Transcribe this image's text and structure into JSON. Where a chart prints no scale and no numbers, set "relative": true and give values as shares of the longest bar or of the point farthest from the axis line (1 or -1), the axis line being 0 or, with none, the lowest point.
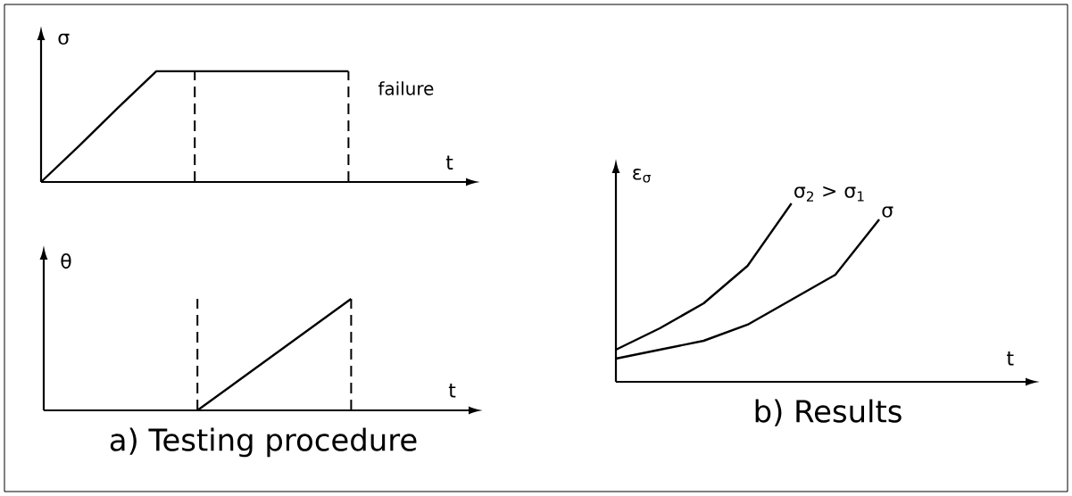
{
  "chart_data": [
    {
      "type": "line",
      "ylabel": "σ",
      "xlabel": "t",
      "relative": true,
      "annotations": [
        "failure"
      ],
      "categories": [
        null,
        null,
        null,
        null,
        null,
        null,
        null,
        null,
        null
      ],
      "series": [
        {
          "color": "#000000",
          "values": [
            0,
            0.33,
            0.67,
            1,
            1,
            1,
            1,
            1,
            1
          ]
        }
      ]
    },
    {
      "type": "line",
      "ylabel": "θ",
      "xlabel": "t",
      "title": "a) Testing procedure",
      "relative": true,
      "categories": [
        null,
        null,
        null,
        null,
        null,
        null,
        null,
        null,
        null
      ],
      "series": [
        {
          "color": "#000000",
          "values": [
            null,
            null,
            null,
            null,
            0,
            0.25,
            0.5,
            0.75,
            1
          ]
        }
      ]
    },
    {
      "type": "line",
      "ylabel": "ε$_{σ}$",
      "xlabel": "t",
      "title": "b) Results",
      "relative": true,
      "categories": [
        null,
        null,
        null,
        null,
        null,
        null,
        null
      ],
      "series": [
        {
          "name": "σ$_{2}$ > σ$_{1}$",
          "color": "#000000",
          "values": [
            0.18,
            0.3,
            0.44,
            0.65,
            1,
            null,
            null
          ]
        },
        {
          "name": "σ",
          "color": "#000000",
          "values": [
            0.13,
            0.18,
            0.23,
            0.32,
            0.46,
            0.6,
            0.91
          ]
        }
      ]
    }
  ]
}
